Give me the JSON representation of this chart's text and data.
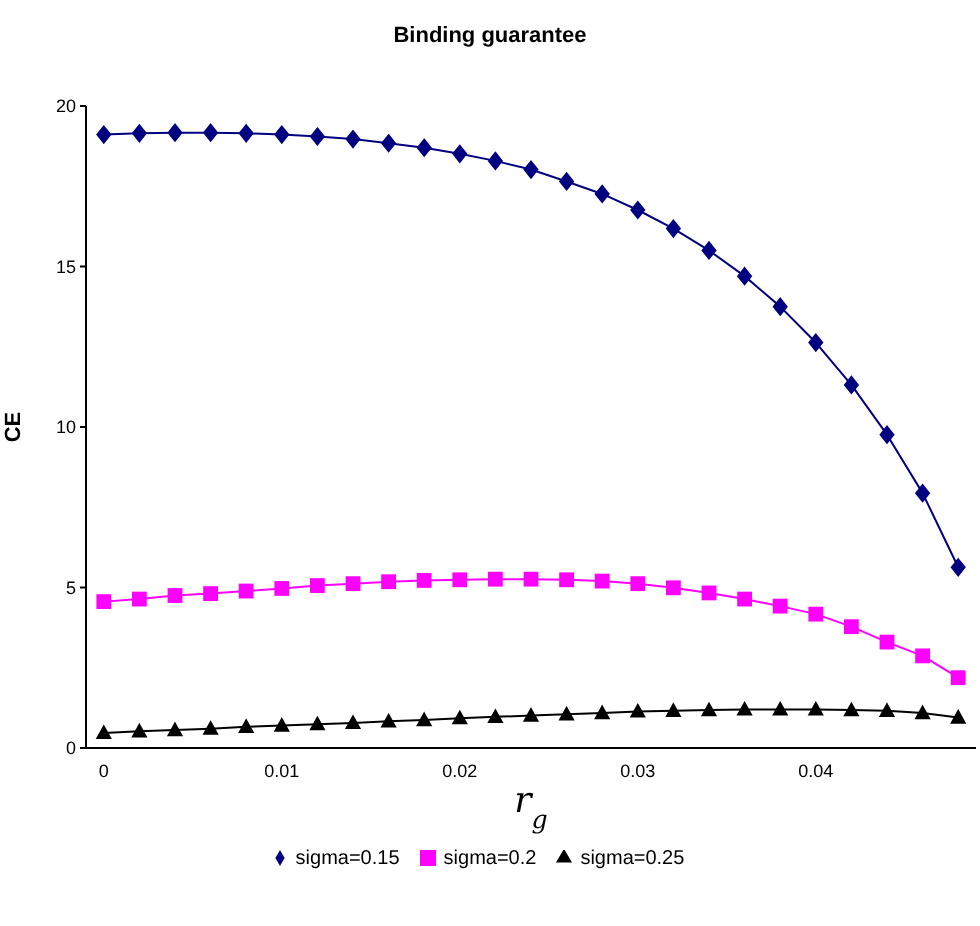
{
  "chart_data": {
    "type": "line",
    "title": "Binding guarantee",
    "xlabel": "r$_{g}$",
    "ylabel": "CE",
    "categories": [
      "0",
      null,
      null,
      null,
      null,
      "0.01",
      null,
      null,
      null,
      null,
      "0.02",
      null,
      null,
      null,
      null,
      "0.03",
      null,
      null,
      null,
      null,
      "0.04",
      null,
      null,
      null,
      null
    ],
    "series": [
      {
        "name": "sigma=0.15",
        "color": "#000080",
        "marker": "diamond",
        "values": [
          19.11,
          19.15,
          19.17,
          19.17,
          19.15,
          19.11,
          19.05,
          18.97,
          18.84,
          18.7,
          18.51,
          18.29,
          18.02,
          17.65,
          17.26,
          16.76,
          16.18,
          15.5,
          14.7,
          13.75,
          12.63,
          11.31,
          9.76,
          7.94,
          5.63
        ]
      },
      {
        "name": "sigma=0.2",
        "color": "#ff00ff",
        "marker": "square",
        "values": [
          4.56,
          4.64,
          4.75,
          4.81,
          4.89,
          4.97,
          5.06,
          5.12,
          5.18,
          5.22,
          5.24,
          5.26,
          5.26,
          5.24,
          5.2,
          5.12,
          4.99,
          4.83,
          4.64,
          4.42,
          4.17,
          3.78,
          3.3,
          2.87,
          2.19
        ]
      },
      {
        "name": "sigma=0.25",
        "color": "#000000",
        "marker": "triangle",
        "values": [
          0.47,
          0.52,
          0.56,
          0.6,
          0.66,
          0.7,
          0.74,
          0.78,
          0.83,
          0.87,
          0.93,
          0.97,
          1.01,
          1.05,
          1.09,
          1.14,
          1.16,
          1.18,
          1.2,
          1.2,
          1.2,
          1.18,
          1.16,
          1.09,
          0.95
        ]
      }
    ],
    "ylim": [
      0,
      20
    ],
    "yticks": [
      0,
      5,
      10,
      15,
      20
    ],
    "grid": false,
    "legend": "bottom"
  }
}
